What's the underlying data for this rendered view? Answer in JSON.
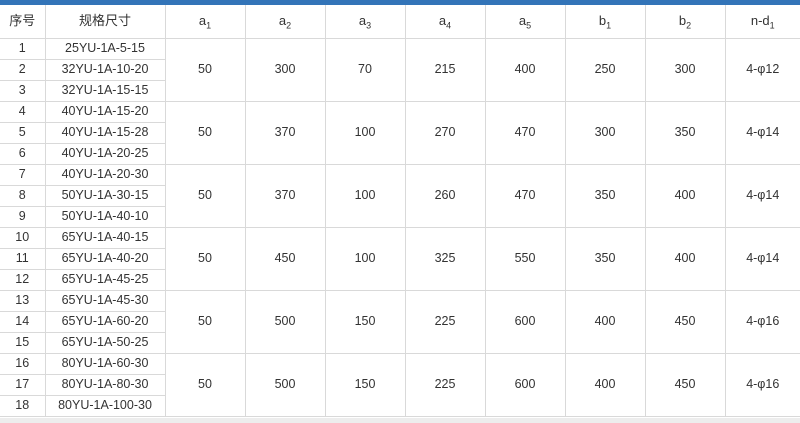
{
  "page": {
    "accent_color": "#3374b8",
    "grid_color": "#d9d9d9",
    "text_color": "#333333"
  },
  "table": {
    "columns": [
      {
        "base": "序号",
        "sub": ""
      },
      {
        "base": "规格尺寸",
        "sub": ""
      },
      {
        "base": "a",
        "sub": "1"
      },
      {
        "base": "a",
        "sub": "2"
      },
      {
        "base": "a",
        "sub": "3"
      },
      {
        "base": "a",
        "sub": "4"
      },
      {
        "base": "a",
        "sub": "5"
      },
      {
        "base": "b",
        "sub": "1"
      },
      {
        "base": "b",
        "sub": "2"
      },
      {
        "base": "n-d",
        "sub": "1"
      }
    ],
    "rows": [
      {
        "no": "1",
        "spec": "25YU-1A-5-15"
      },
      {
        "no": "2",
        "spec": "32YU-1A-10-20"
      },
      {
        "no": "3",
        "spec": "32YU-1A-15-15"
      },
      {
        "no": "4",
        "spec": "40YU-1A-15-20"
      },
      {
        "no": "5",
        "spec": "40YU-1A-15-28"
      },
      {
        "no": "6",
        "spec": "40YU-1A-20-25"
      },
      {
        "no": "7",
        "spec": "40YU-1A-20-30"
      },
      {
        "no": "8",
        "spec": "50YU-1A-30-15"
      },
      {
        "no": "9",
        "spec": "50YU-1A-40-10"
      },
      {
        "no": "10",
        "spec": "65YU-1A-40-15"
      },
      {
        "no": "11",
        "spec": "65YU-1A-40-20"
      },
      {
        "no": "12",
        "spec": "65YU-1A-45-25"
      },
      {
        "no": "13",
        "spec": "65YU-1A-45-30"
      },
      {
        "no": "14",
        "spec": "65YU-1A-60-20"
      },
      {
        "no": "15",
        "spec": "65YU-1A-50-25"
      },
      {
        "no": "16",
        "spec": "80YU-1A-60-30"
      },
      {
        "no": "17",
        "spec": "80YU-1A-80-30"
      },
      {
        "no": "18",
        "spec": "80YU-1A-100-30"
      }
    ],
    "groups": [
      {
        "a1": "50",
        "a2": "300",
        "a3": "70",
        "a4": "215",
        "a5": "400",
        "b1": "250",
        "b2": "300",
        "nd1": "4-φ12"
      },
      {
        "a1": "50",
        "a2": "370",
        "a3": "100",
        "a4": "270",
        "a5": "470",
        "b1": "300",
        "b2": "350",
        "nd1": "4-φ14"
      },
      {
        "a1": "50",
        "a2": "370",
        "a3": "100",
        "a4": "260",
        "a5": "470",
        "b1": "350",
        "b2": "400",
        "nd1": "4-φ14"
      },
      {
        "a1": "50",
        "a2": "450",
        "a3": "100",
        "a4": "325",
        "a5": "550",
        "b1": "350",
        "b2": "400",
        "nd1": "4-φ14"
      },
      {
        "a1": "50",
        "a2": "500",
        "a3": "150",
        "a4": "225",
        "a5": "600",
        "b1": "400",
        "b2": "450",
        "nd1": "4-φ16"
      },
      {
        "a1": "50",
        "a2": "500",
        "a3": "150",
        "a4": "225",
        "a5": "600",
        "b1": "400",
        "b2": "450",
        "nd1": "4-φ16"
      }
    ]
  }
}
